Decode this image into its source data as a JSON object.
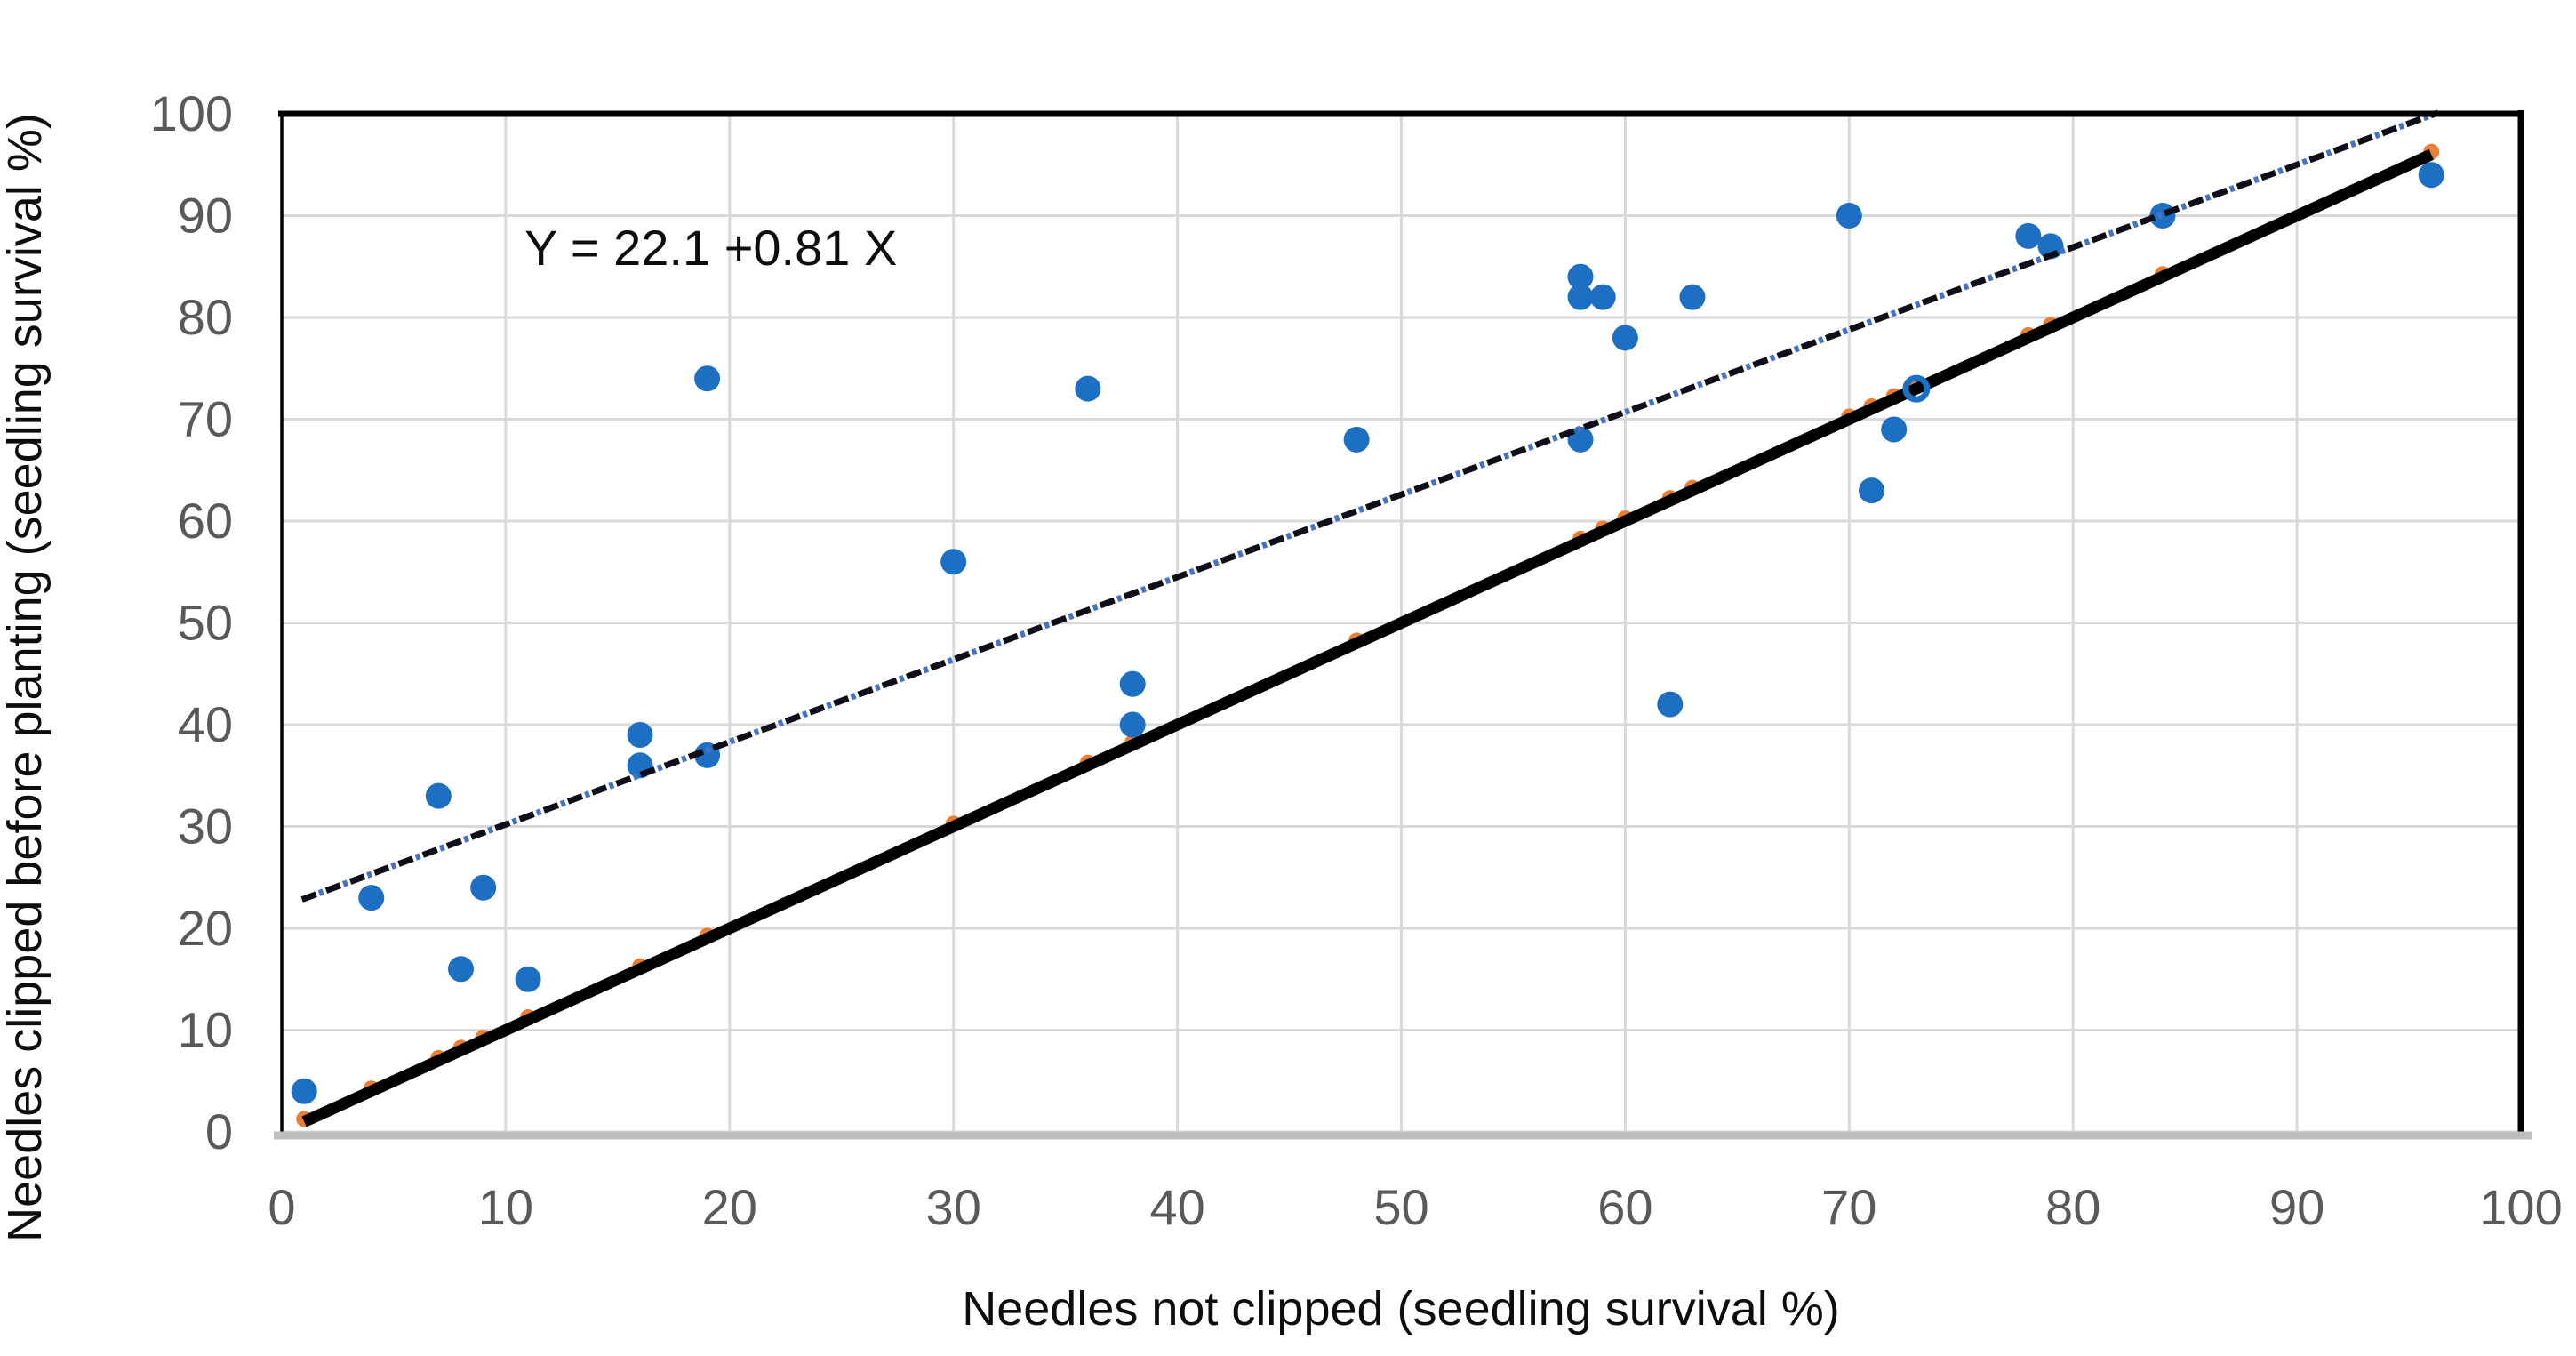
{
  "figure": {
    "background_color": "#ffffff",
    "gridline_color": "#d9d9d9",
    "tick_label_color": "#595959",
    "plot_border_color": "#000000",
    "bottom_axis_color": "#bfbfbf"
  },
  "chart_data": {
    "type": "scatter",
    "title": "",
    "xlabel": "Needles not clipped (seedling survival %)",
    "ylabel": "Needles clipped before planting (seedling survival %)",
    "xlim": [
      0,
      100
    ],
    "ylim": [
      0,
      100
    ],
    "x_ticks": [
      0,
      10,
      20,
      30,
      40,
      50,
      60,
      70,
      80,
      90,
      100
    ],
    "y_ticks": [
      0,
      10,
      20,
      30,
      40,
      50,
      60,
      70,
      80,
      90,
      100
    ],
    "grid": true,
    "legend": "none",
    "annotation": {
      "text": "Y = 22.1 +0.81 X",
      "x": 10.8,
      "y": 85
    },
    "series": [
      {
        "name": "observed-survival-points",
        "type": "scatter",
        "color": "#1d6fc4",
        "points": [
          [
            1,
            4
          ],
          [
            4,
            23
          ],
          [
            7,
            33
          ],
          [
            8,
            16
          ],
          [
            9,
            24
          ],
          [
            11,
            15
          ],
          [
            16,
            36
          ],
          [
            16,
            39
          ],
          [
            19,
            37
          ],
          [
            19,
            74
          ],
          [
            30,
            56
          ],
          [
            36,
            73
          ],
          [
            38,
            40
          ],
          [
            38,
            44
          ],
          [
            48,
            68
          ],
          [
            58,
            68
          ],
          [
            58,
            82
          ],
          [
            58,
            84
          ],
          [
            59,
            82
          ],
          [
            60,
            78
          ],
          [
            62,
            42
          ],
          [
            63,
            82
          ],
          [
            70,
            90
          ],
          [
            71,
            63
          ],
          [
            72,
            69
          ],
          [
            73,
            73
          ],
          [
            78,
            88
          ],
          [
            79,
            87
          ],
          [
            84,
            90
          ],
          [
            96,
            94
          ]
        ],
        "open_marker_point": [
          73,
          73
        ]
      },
      {
        "name": "identity-line-y-equals-x",
        "type": "line",
        "color": "#000000",
        "from": [
          1,
          1
        ],
        "to": [
          96,
          96
        ],
        "marker_color": "#ed7d31",
        "marker_x": [
          1,
          4,
          7,
          8,
          9,
          11,
          16,
          19,
          30,
          36,
          38,
          48,
          58,
          59,
          60,
          62,
          63,
          70,
          71,
          72,
          73,
          78,
          79,
          84,
          96
        ]
      },
      {
        "name": "regression-line",
        "type": "line",
        "style": "dash-dot",
        "dash_color": "#0e0e1a",
        "dot_color": "#4472c4",
        "equation": "Y = 22.1 +0.81 X",
        "intercept": 22.1,
        "slope": 0.81,
        "x_start": 0.9,
        "x_end": 96.3
      }
    ]
  }
}
